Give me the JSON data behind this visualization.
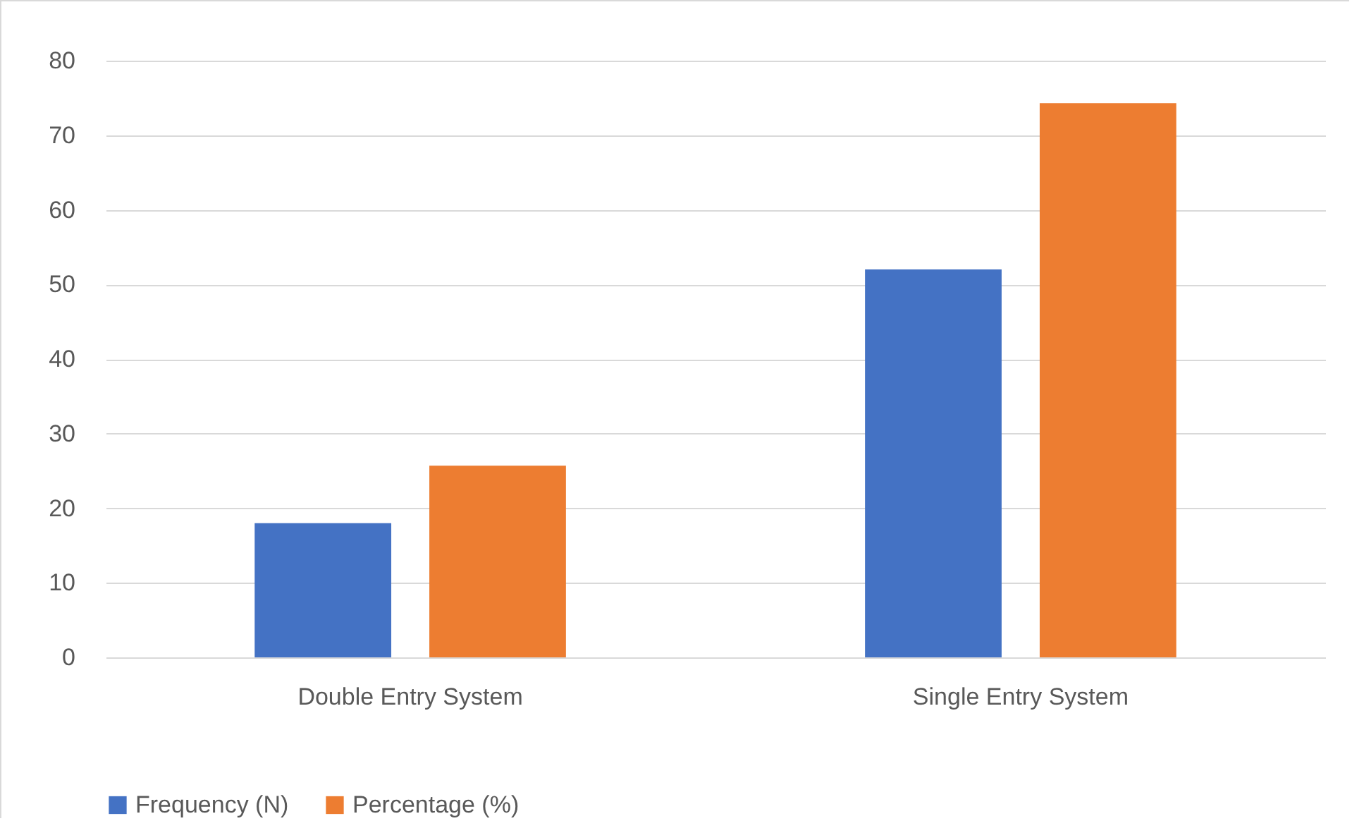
{
  "chart_data": {
    "type": "bar",
    "categories": [
      "Double Entry System",
      "Single Entry System"
    ],
    "series": [
      {
        "name": "Frequency (N)",
        "color": "#4472c4",
        "values": [
          18,
          52
        ]
      },
      {
        "name": "Percentage (%)",
        "color": "#ed7d31",
        "values": [
          25.7,
          74.3
        ]
      }
    ],
    "ylim": [
      0,
      80
    ],
    "yticks": [
      0,
      10,
      20,
      30,
      40,
      50,
      60,
      70,
      80
    ],
    "grid": "y",
    "legend": "bottom"
  }
}
